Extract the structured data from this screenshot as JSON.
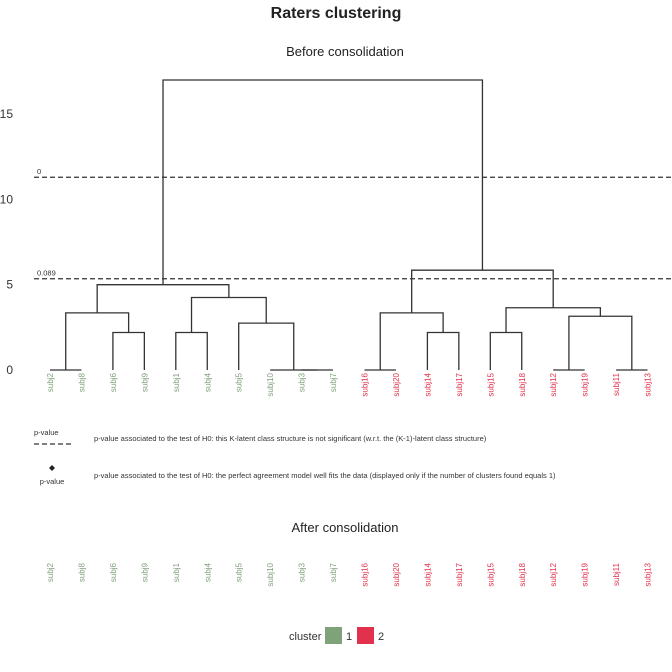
{
  "chart_data": {
    "type": "dendrogram",
    "title": "Raters clustering",
    "subtitle_before": "Before consolidation",
    "subtitle_after": "After consolidation",
    "y_ticks": [
      0,
      5,
      10,
      15
    ],
    "ylim": [
      0,
      17
    ],
    "leaves": [
      {
        "label": "subj2",
        "cluster": 1
      },
      {
        "label": "subj8",
        "cluster": 1
      },
      {
        "label": "subj6",
        "cluster": 1
      },
      {
        "label": "subj9",
        "cluster": 1
      },
      {
        "label": "subj1",
        "cluster": 1
      },
      {
        "label": "subj4",
        "cluster": 1
      },
      {
        "label": "subj5",
        "cluster": 1
      },
      {
        "label": "subj10",
        "cluster": 1
      },
      {
        "label": "subj3",
        "cluster": 1
      },
      {
        "label": "subj7",
        "cluster": 1
      },
      {
        "label": "subj16",
        "cluster": 2
      },
      {
        "label": "subj20",
        "cluster": 2
      },
      {
        "label": "subj14",
        "cluster": 2
      },
      {
        "label": "subj17",
        "cluster": 2
      },
      {
        "label": "subj15",
        "cluster": 2
      },
      {
        "label": "subj18",
        "cluster": 2
      },
      {
        "label": "subj12",
        "cluster": 2
      },
      {
        "label": "subj19",
        "cluster": 2
      },
      {
        "label": "subj11",
        "cluster": 2
      },
      {
        "label": "subj13",
        "cluster": 2
      }
    ],
    "merges": [
      {
        "a": 0,
        "b": 1,
        "height": 0.0
      },
      {
        "a": 8,
        "b": 9,
        "height": 0.0
      },
      {
        "a": 10,
        "b": 11,
        "height": 0.0
      },
      {
        "a": 16,
        "b": 17,
        "height": 0.0
      },
      {
        "a": 18,
        "b": 19,
        "height": 0.0
      },
      {
        "a": 7,
        "b": "m2",
        "height": 0.0
      },
      {
        "a": 2,
        "b": 3,
        "height": 2.2
      },
      {
        "a": 4,
        "b": 5,
        "height": 2.2
      },
      {
        "a": 12,
        "b": 13,
        "height": 2.2
      },
      {
        "a": 14,
        "b": 15,
        "height": 2.2
      },
      {
        "a": 6,
        "b": "m6",
        "height": 2.75
      },
      {
        "a": "m1",
        "b": "m7",
        "height": 3.35
      },
      {
        "a": "m4",
        "b": "m5",
        "height": 3.15
      },
      {
        "a": "m3",
        "b": "m9",
        "height": 3.35
      },
      {
        "a": "m8",
        "b": "m11",
        "height": 4.25
      },
      {
        "a": "m10",
        "b": "m13",
        "height": 3.65
      },
      {
        "a": "m12",
        "b": "m15",
        "height": 5.0
      },
      {
        "a": "m14",
        "b": "m16",
        "height": 5.85
      },
      {
        "a": "m17",
        "b": "m18",
        "height": 17.0
      }
    ],
    "thresholds": [
      {
        "label": "0",
        "height": 11.3
      },
      {
        "label": "0.089",
        "height": 5.35
      }
    ],
    "legend_title": "cluster",
    "legend_items": [
      {
        "label": "1",
        "color": "#80a27b"
      },
      {
        "label": "2",
        "color": "#e2314c"
      }
    ]
  },
  "notes": {
    "pvalue_label": "p-value",
    "dashed_note": "p-value associated to the test of H0: this K-latent class structure is not significant (w.r.t. the (K-1)-latent class structure)",
    "diamond_note": "p-value associated to the test of H0: the perfect agreement model well fits the data (displayed only if the number of clusters found equals 1)"
  },
  "colors": {
    "cluster1": "#80a27b",
    "cluster2": "#e2314c",
    "line": "#333333"
  }
}
